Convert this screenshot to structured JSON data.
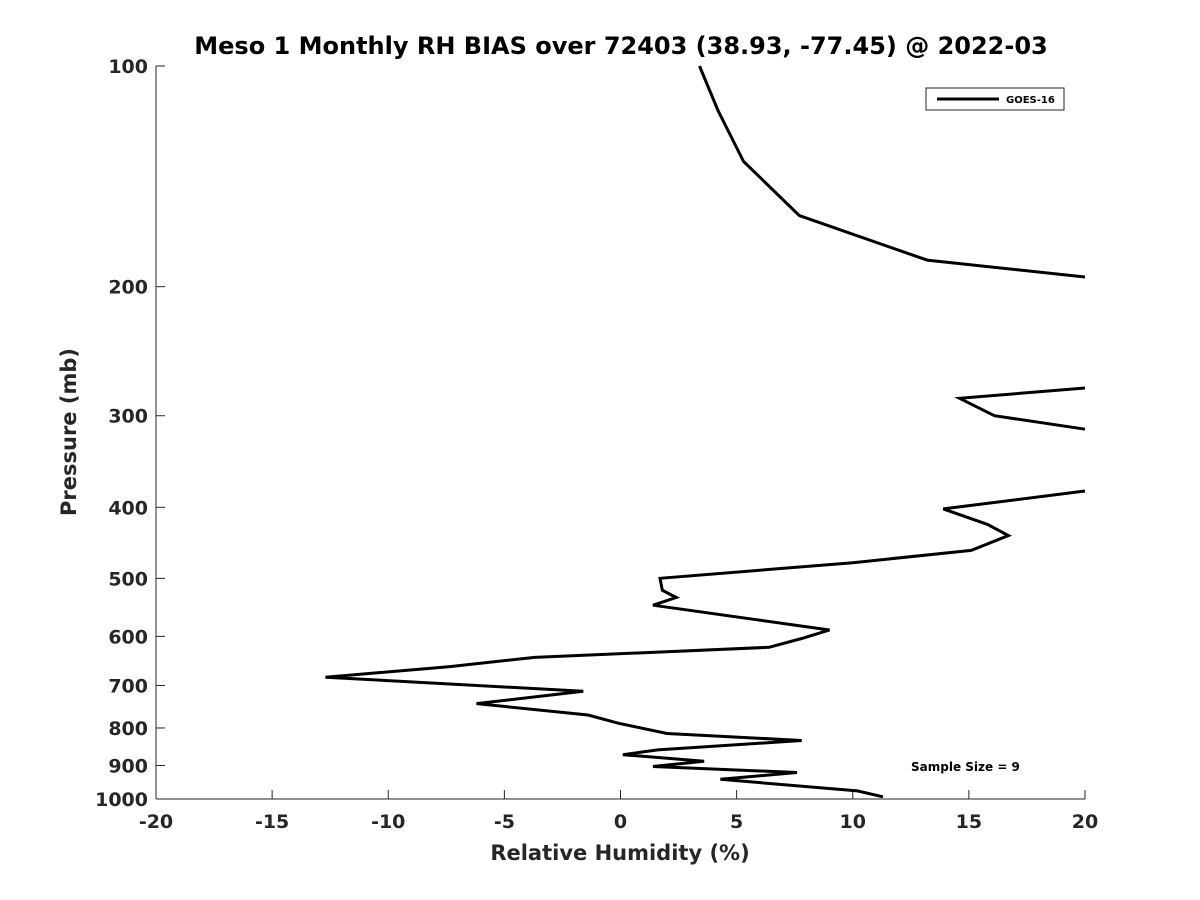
{
  "chart_data": {
    "type": "line",
    "title": "Meso 1 Monthly RH BIAS over 72403 (38.93, -77.45) @ 2022-03",
    "xlabel": "Relative Humidity (%)",
    "ylabel": "Pressure (mb)",
    "xlim": [
      -20,
      20
    ],
    "ylim": [
      100,
      1000
    ],
    "y_scale": "log",
    "y_direction": "reversed",
    "grid": false,
    "x_ticks": [
      "-20",
      "-15",
      "-10",
      "-5",
      "0",
      "5",
      "10",
      "15",
      "20"
    ],
    "y_ticks": [
      "100",
      "200",
      "300",
      "400",
      "500",
      "600",
      "700",
      "800",
      "900",
      "1000"
    ],
    "legend_placement": "top-right",
    "annotation": "Sample Size = 9",
    "series": [
      {
        "name": "GOES-16",
        "color": "#000000",
        "segments": [
          [
            [
              3.4,
              100
            ],
            [
              4.2,
              115
            ],
            [
              5.3,
              135
            ],
            [
              7.7,
              160
            ],
            [
              13.2,
              184
            ],
            [
              20.0,
              194
            ]
          ],
          [
            [
              20.0,
              275
            ],
            [
              14.6,
              284
            ],
            [
              16.1,
              300
            ],
            [
              20.0,
              313
            ]
          ],
          [
            [
              20.0,
              380
            ],
            [
              13.9,
              402
            ],
            [
              15.8,
              422
            ],
            [
              16.7,
              437
            ],
            [
              15.1,
              458
            ],
            [
              10.0,
              476
            ],
            [
              1.7,
              500
            ],
            [
              1.8,
              519
            ],
            [
              2.4,
              531
            ],
            [
              1.4,
              544
            ],
            [
              9.0,
              588
            ],
            [
              7.8,
              604
            ],
            [
              6.4,
              621
            ],
            [
              -3.7,
              641
            ],
            [
              -7.4,
              660
            ],
            [
              -12.7,
              682
            ],
            [
              -1.6,
              713
            ],
            [
              -6.2,
              741
            ],
            [
              -1.4,
              768
            ],
            [
              -0.1,
              788
            ],
            [
              2.0,
              814
            ],
            [
              7.8,
              832
            ],
            [
              1.6,
              857
            ],
            [
              0.1,
              870
            ],
            [
              3.6,
              888
            ],
            [
              1.4,
              903
            ],
            [
              7.6,
              920
            ],
            [
              4.3,
              940
            ],
            [
              10.2,
              975
            ],
            [
              11.3,
              993
            ]
          ]
        ]
      }
    ]
  }
}
